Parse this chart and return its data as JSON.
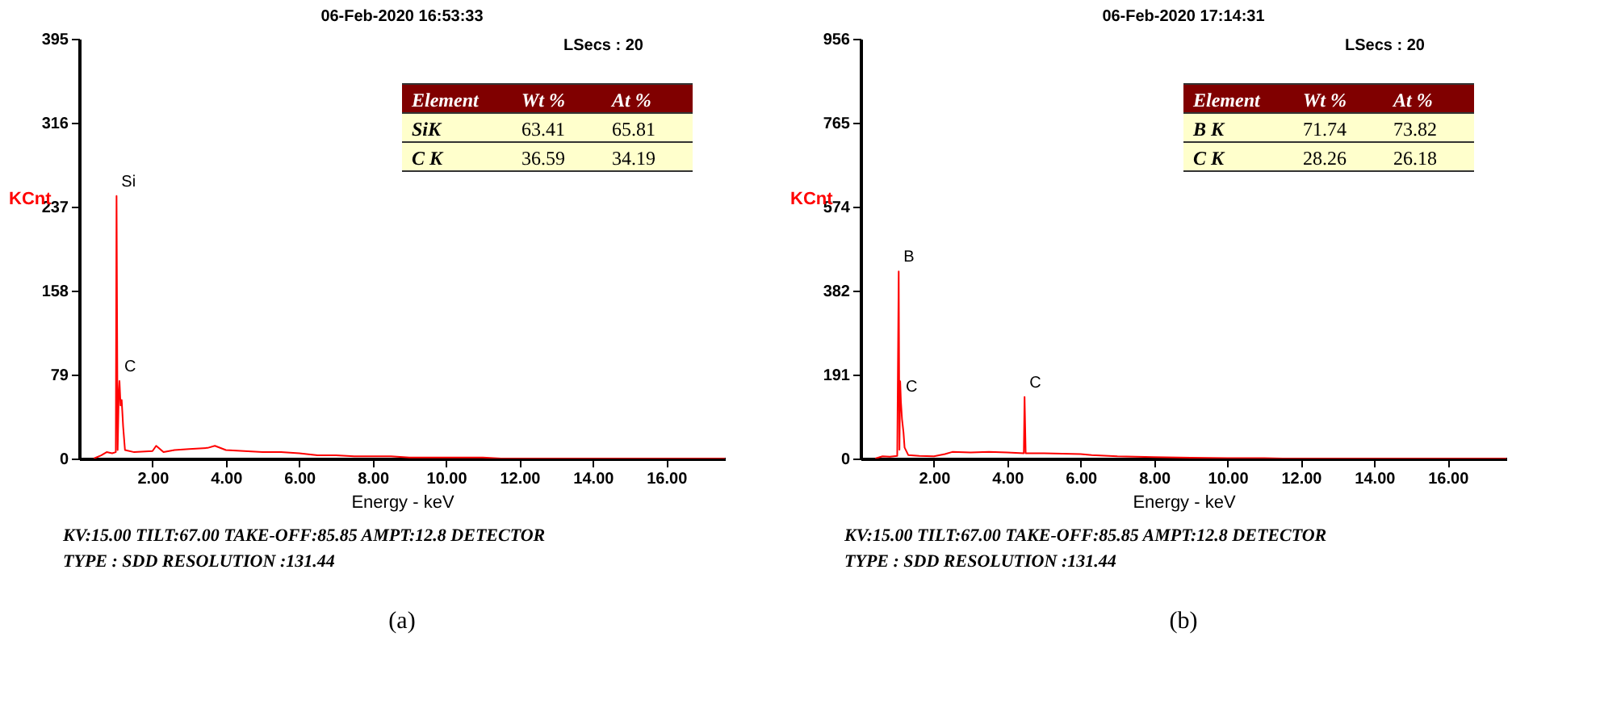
{
  "chart_data": [
    {
      "type": "line",
      "title": "06-Feb-2020 16:53:33",
      "xlabel": "Energy - keV",
      "ylabel": "KCnt",
      "xlim": [
        0,
        17.6
      ],
      "xticks": [
        {
          "value": 2,
          "label": "2.00"
        },
        {
          "value": 4,
          "label": "4.00"
        },
        {
          "value": 6,
          "label": "6.00"
        },
        {
          "value": 8,
          "label": "8.00"
        },
        {
          "value": 10,
          "label": "10.00"
        },
        {
          "value": 12,
          "label": "12.00"
        },
        {
          "value": 14,
          "label": "14.00"
        },
        {
          "value": 16,
          "label": "16.00"
        }
      ],
      "ylim": [
        0,
        395
      ],
      "yticks": [
        0,
        79,
        158,
        237,
        316,
        395
      ],
      "grid": false,
      "line_style": "solid",
      "x": [
        0.4,
        0.6,
        0.75,
        0.9,
        1.0,
        1.02,
        1.05,
        1.08,
        1.1,
        1.13,
        1.16,
        1.2,
        1.25,
        1.5,
        2.0,
        2.1,
        2.3,
        2.6,
        3.0,
        3.5,
        3.7,
        4.0,
        4.5,
        5.0,
        5.5,
        6.0,
        6.5,
        7.0,
        7.5,
        8.0,
        8.5,
        9.0,
        10.0,
        11.0,
        11.5,
        17.6
      ],
      "series": [
        {
          "color": "#ff0000",
          "values": [
            0,
            3,
            6,
            5,
            6,
            247,
            8,
            60,
            73,
            50,
            55,
            30,
            8,
            6,
            7,
            12,
            6,
            8,
            9,
            10,
            12,
            8,
            7,
            6,
            6,
            5,
            3,
            3,
            2,
            2,
            2,
            1,
            1,
            1,
            0,
            0
          ]
        }
      ],
      "annotations": [
        "LSecs : 20",
        "Element",
        "Wt %",
        "At %",
        "SiK",
        "63.41",
        "65.81",
        "C K",
        "36.59",
        "34.19",
        "KV:15.00  TILT:67.00  TAKE-OFF:85.85  AMPT:12.8  DETECTOR",
        "TYPE  : SDD  RESOLUTION :131.44",
        "(a)",
        {
          "text": "Si",
          "x": 1.02,
          "y": 247
        },
        {
          "text": "C",
          "x": 1.1,
          "y": 73
        }
      ]
    },
    {
      "type": "line",
      "title": "06-Feb-2020 17:14:31",
      "xlabel": "Energy - keV",
      "ylabel": "KCnt",
      "xlim": [
        0,
        17.6
      ],
      "xticks": [
        {
          "value": 2,
          "label": "2.00"
        },
        {
          "value": 4,
          "label": "4.00"
        },
        {
          "value": 6,
          "label": "6.00"
        },
        {
          "value": 8,
          "label": "8.00"
        },
        {
          "value": 10,
          "label": "10.00"
        },
        {
          "value": 12,
          "label": "12.00"
        },
        {
          "value": 14,
          "label": "14.00"
        },
        {
          "value": 16,
          "label": "16.00"
        }
      ],
      "ylim": [
        0,
        956
      ],
      "yticks": [
        0,
        191,
        382,
        574,
        765,
        956
      ],
      "grid": false,
      "line_style": "solid",
      "x": [
        0.4,
        0.6,
        0.8,
        1.0,
        1.04,
        1.06,
        1.08,
        1.1,
        1.13,
        1.17,
        1.2,
        1.3,
        1.6,
        2.0,
        2.3,
        2.5,
        3.0,
        3.5,
        4.0,
        4.45,
        4.47,
        4.5,
        5.0,
        5.5,
        6.0,
        6.3,
        7.0,
        8.0,
        9.0,
        10.0,
        11.0,
        11.5,
        17.6
      ],
      "series": [
        {
          "color": "#ff0000",
          "values": [
            0,
            5,
            4,
            6,
            426,
            20,
            176,
            130,
            90,
            60,
            25,
            8,
            6,
            5,
            10,
            15,
            14,
            15,
            14,
            12,
            140,
            12,
            12,
            11,
            10,
            8,
            5,
            3,
            2,
            1,
            1,
            0,
            0
          ]
        }
      ],
      "annotations": [
        "LSecs : 20",
        "Element",
        "Wt %",
        "At %",
        "B K",
        "71.74",
        "73.82",
        "C K",
        "28.26",
        "26.18",
        "KV:15.00  TILT:67.00  TAKE-OFF:85.85  AMPT:12.8  DETECTOR",
        "TYPE  : SDD  RESOLUTION :131.44",
        "(b)",
        {
          "text": "B",
          "x": 1.04,
          "y": 426
        },
        {
          "text": "C",
          "x": 1.1,
          "y": 130
        },
        {
          "text": "C",
          "x": 4.47,
          "y": 140
        }
      ]
    }
  ]
}
